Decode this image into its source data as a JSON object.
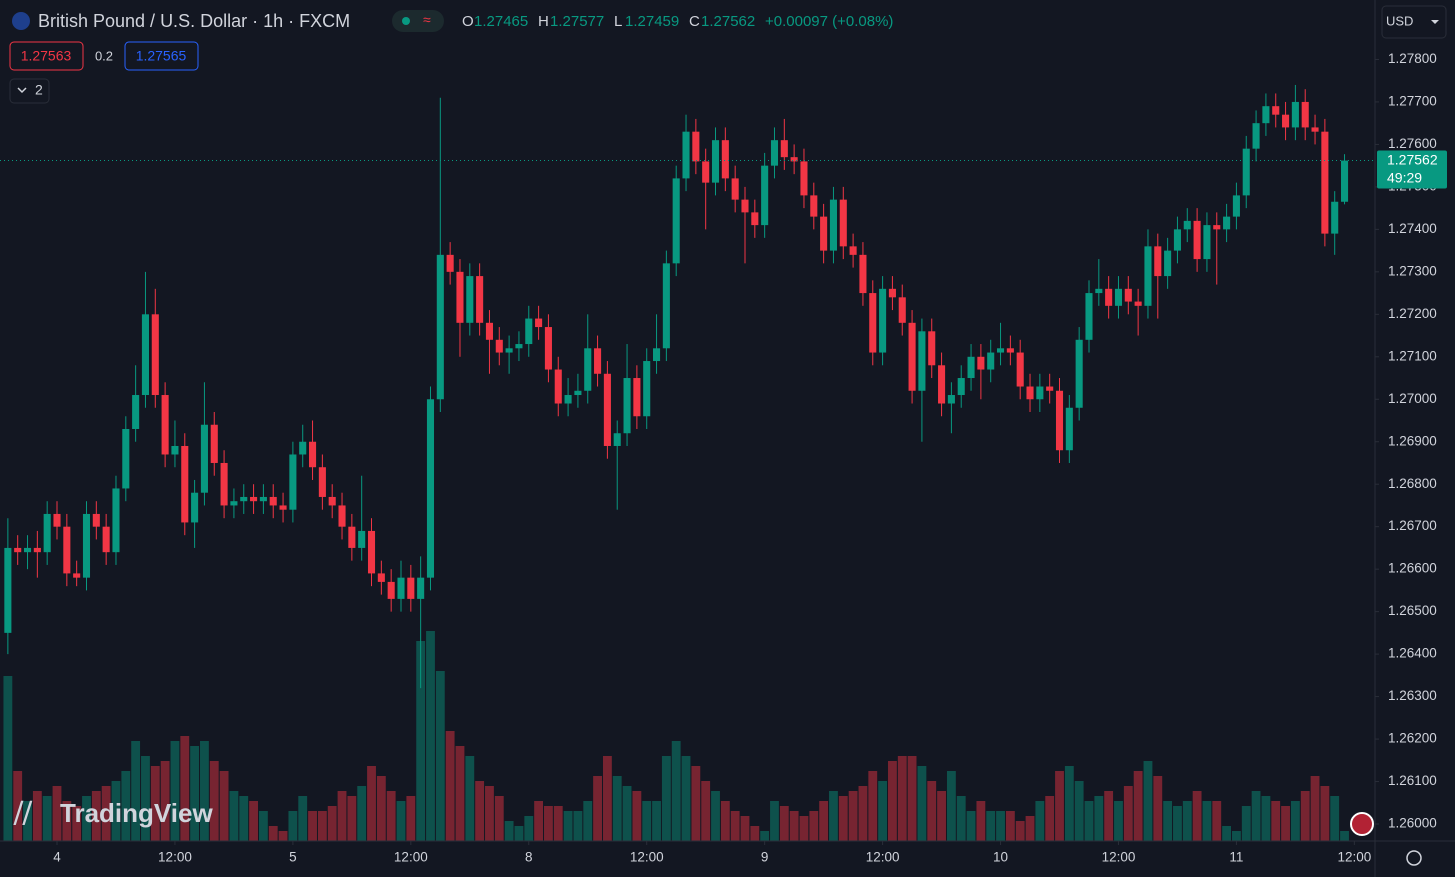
{
  "ui": {
    "symbol": "British Pound / U.S. Dollar · 1h · FXCM",
    "o": "O",
    "h": "H",
    "l": "L",
    "c": "C",
    "change": "+0.00097 (+0.08%)",
    "bid": "1.27563",
    "spread": "0.2",
    "ask": "1.27565",
    "indicators": "2",
    "currency": "USD",
    "countdown": "49:29",
    "brand": "TradingView"
  },
  "chart_data": {
    "type": "candlestick",
    "up_color": "#089981",
    "down_color": "#f23645",
    "grid": false,
    "ylim": [
      1.2596,
      1.2794
    ],
    "xlim": [
      -0.8,
      139.1
    ],
    "yticks": [
      {
        "value": 1.26,
        "label": "1.26000"
      },
      {
        "value": 1.261,
        "label": "1.26100"
      },
      {
        "value": 1.262,
        "label": "1.26200"
      },
      {
        "value": 1.263,
        "label": "1.26300"
      },
      {
        "value": 1.264,
        "label": "1.26400"
      },
      {
        "value": 1.265,
        "label": "1.26500"
      },
      {
        "value": 1.266,
        "label": "1.26600"
      },
      {
        "value": 1.267,
        "label": "1.26700"
      },
      {
        "value": 1.268,
        "label": "1.26800"
      },
      {
        "value": 1.269,
        "label": "1.26900"
      },
      {
        "value": 1.27,
        "label": "1.27000"
      },
      {
        "value": 1.271,
        "label": "1.27100"
      },
      {
        "value": 1.272,
        "label": "1.27200"
      },
      {
        "value": 1.273,
        "label": "1.27300"
      },
      {
        "value": 1.274,
        "label": "1.27400"
      },
      {
        "value": 1.275,
        "label": "1.27500"
      },
      {
        "value": 1.276,
        "label": "1.27600"
      },
      {
        "value": 1.277,
        "label": "1.27700"
      },
      {
        "value": 1.278,
        "label": "1.27800"
      }
    ],
    "xticks": [
      {
        "value": 5,
        "label": "4"
      },
      {
        "value": 17,
        "label": "12:00"
      },
      {
        "value": 29,
        "label": "5"
      },
      {
        "value": 41,
        "label": "12:00"
      },
      {
        "value": 53,
        "label": "8"
      },
      {
        "value": 65,
        "label": "12:00"
      },
      {
        "value": 77,
        "label": "9"
      },
      {
        "value": 89,
        "label": "12:00"
      },
      {
        "value": 101,
        "label": "10"
      },
      {
        "value": 113,
        "label": "12:00"
      },
      {
        "value": 125,
        "label": "11"
      },
      {
        "value": 137,
        "label": "12:00"
      }
    ],
    "ohlc": [
      [
        1.2645,
        1.2672,
        1.264,
        1.2665
      ],
      [
        1.2665,
        1.2668,
        1.2661,
        1.2664
      ],
      [
        1.2664,
        1.2668,
        1.266,
        1.2665
      ],
      [
        1.2665,
        1.2669,
        1.2658,
        1.2664
      ],
      [
        1.2664,
        1.2676,
        1.2661,
        1.2673
      ],
      [
        1.2673,
        1.2676,
        1.2667,
        1.267
      ],
      [
        1.267,
        1.2673,
        1.2656,
        1.2659
      ],
      [
        1.2659,
        1.2662,
        1.2656,
        1.2658
      ],
      [
        1.2658,
        1.2676,
        1.2655,
        1.2673
      ],
      [
        1.2673,
        1.2676,
        1.2667,
        1.267
      ],
      [
        1.267,
        1.2673,
        1.2661,
        1.2664
      ],
      [
        1.2664,
        1.2682,
        1.2661,
        1.2679
      ],
      [
        1.2679,
        1.2696,
        1.2676,
        1.2693
      ],
      [
        1.2693,
        1.2708,
        1.269,
        1.2701
      ],
      [
        1.2701,
        1.273,
        1.2698,
        1.272
      ],
      [
        1.272,
        1.2726,
        1.2698,
        1.2701
      ],
      [
        1.2701,
        1.2704,
        1.2684,
        1.2687
      ],
      [
        1.2687,
        1.2695,
        1.2684,
        1.2689
      ],
      [
        1.2689,
        1.2692,
        1.2668,
        1.2671
      ],
      [
        1.2671,
        1.2681,
        1.2665,
        1.2678
      ],
      [
        1.2678,
        1.2704,
        1.2675,
        1.2694
      ],
      [
        1.2694,
        1.2697,
        1.2682,
        1.2685
      ],
      [
        1.2685,
        1.2688,
        1.2672,
        1.2675
      ],
      [
        1.2675,
        1.2679,
        1.2672,
        1.2676
      ],
      [
        1.2676,
        1.268,
        1.2673,
        1.2677
      ],
      [
        1.2677,
        1.268,
        1.2673,
        1.2676
      ],
      [
        1.2676,
        1.268,
        1.2673,
        1.2677
      ],
      [
        1.2677,
        1.268,
        1.2672,
        1.2675
      ],
      [
        1.2675,
        1.2678,
        1.2671,
        1.2674
      ],
      [
        1.2674,
        1.269,
        1.2671,
        1.2687
      ],
      [
        1.2687,
        1.2694,
        1.2684,
        1.269
      ],
      [
        1.269,
        1.2695,
        1.2681,
        1.2684
      ],
      [
        1.2684,
        1.2687,
        1.2674,
        1.2677
      ],
      [
        1.2677,
        1.268,
        1.2672,
        1.2675
      ],
      [
        1.2675,
        1.2678,
        1.2667,
        1.267
      ],
      [
        1.267,
        1.2673,
        1.2662,
        1.2665
      ],
      [
        1.2665,
        1.2682,
        1.2662,
        1.2669
      ],
      [
        1.2669,
        1.2672,
        1.2656,
        1.2659
      ],
      [
        1.2659,
        1.2662,
        1.2654,
        1.2657
      ],
      [
        1.2657,
        1.266,
        1.265,
        1.2653
      ],
      [
        1.2653,
        1.2662,
        1.265,
        1.2658
      ],
      [
        1.2658,
        1.2661,
        1.265,
        1.2653
      ],
      [
        1.2653,
        1.2663,
        1.2632,
        1.2658
      ],
      [
        1.2658,
        1.2703,
        1.2655,
        1.27
      ],
      [
        1.27,
        1.2771,
        1.2697,
        1.2734
      ],
      [
        1.2734,
        1.2737,
        1.2727,
        1.273
      ],
      [
        1.273,
        1.2733,
        1.271,
        1.2718
      ],
      [
        1.2718,
        1.2732,
        1.2715,
        1.2729
      ],
      [
        1.2729,
        1.2732,
        1.2715,
        1.2718
      ],
      [
        1.2718,
        1.2721,
        1.2706,
        1.2714
      ],
      [
        1.2714,
        1.2717,
        1.2708,
        1.2711
      ],
      [
        1.2711,
        1.2715,
        1.2706,
        1.2712
      ],
      [
        1.2712,
        1.2716,
        1.2709,
        1.2713
      ],
      [
        1.2713,
        1.2722,
        1.271,
        1.2719
      ],
      [
        1.2719,
        1.2722,
        1.2714,
        1.2717
      ],
      [
        1.2717,
        1.272,
        1.2704,
        1.2707
      ],
      [
        1.2707,
        1.271,
        1.2696,
        1.2699
      ],
      [
        1.2699,
        1.2705,
        1.2696,
        1.2701
      ],
      [
        1.2701,
        1.2706,
        1.2698,
        1.2702
      ],
      [
        1.2702,
        1.272,
        1.2699,
        1.2712
      ],
      [
        1.2712,
        1.2715,
        1.2703,
        1.2706
      ],
      [
        1.2706,
        1.2709,
        1.2686,
        1.2689
      ],
      [
        1.2689,
        1.2695,
        1.2674,
        1.2692
      ],
      [
        1.2692,
        1.2713,
        1.2689,
        1.2705
      ],
      [
        1.2705,
        1.2708,
        1.2693,
        1.2696
      ],
      [
        1.2696,
        1.2712,
        1.2693,
        1.2709
      ],
      [
        1.2709,
        1.272,
        1.2706,
        1.2712
      ],
      [
        1.2712,
        1.2735,
        1.2709,
        1.2732
      ],
      [
        1.2732,
        1.2755,
        1.2729,
        1.2752
      ],
      [
        1.2752,
        1.2767,
        1.2749,
        1.2763
      ],
      [
        1.2763,
        1.2766,
        1.2753,
        1.2756
      ],
      [
        1.2756,
        1.2759,
        1.274,
        1.2751
      ],
      [
        1.2751,
        1.2764,
        1.2748,
        1.2761
      ],
      [
        1.2761,
        1.2764,
        1.2749,
        1.2752
      ],
      [
        1.2752,
        1.2755,
        1.2744,
        1.2747
      ],
      [
        1.2747,
        1.275,
        1.2732,
        1.2744
      ],
      [
        1.2744,
        1.2747,
        1.2738,
        1.2741
      ],
      [
        1.2741,
        1.2758,
        1.2738,
        1.2755
      ],
      [
        1.2755,
        1.2764,
        1.2752,
        1.2761
      ],
      [
        1.2761,
        1.2766,
        1.2754,
        1.2757
      ],
      [
        1.2757,
        1.276,
        1.2753,
        1.2756
      ],
      [
        1.2756,
        1.2759,
        1.2745,
        1.2748
      ],
      [
        1.2748,
        1.2751,
        1.274,
        1.2743
      ],
      [
        1.2743,
        1.2746,
        1.2732,
        1.2735
      ],
      [
        1.2735,
        1.275,
        1.2732,
        1.2747
      ],
      [
        1.2747,
        1.275,
        1.2733,
        1.2736
      ],
      [
        1.2736,
        1.2739,
        1.2731,
        1.2734
      ],
      [
        1.2734,
        1.2737,
        1.2722,
        1.2725
      ],
      [
        1.2725,
        1.2728,
        1.2708,
        1.2711
      ],
      [
        1.2711,
        1.2729,
        1.2708,
        1.2726
      ],
      [
        1.2726,
        1.2729,
        1.2721,
        1.2724
      ],
      [
        1.2724,
        1.2727,
        1.2715,
        1.2718
      ],
      [
        1.2718,
        1.2721,
        1.2699,
        1.2702
      ],
      [
        1.2702,
        1.2719,
        1.269,
        1.2716
      ],
      [
        1.2716,
        1.2719,
        1.2705,
        1.2708
      ],
      [
        1.2708,
        1.2711,
        1.2696,
        1.2699
      ],
      [
        1.2699,
        1.2704,
        1.2692,
        1.2701
      ],
      [
        1.2701,
        1.2708,
        1.2698,
        1.2705
      ],
      [
        1.2705,
        1.2713,
        1.2702,
        1.271
      ],
      [
        1.271,
        1.2713,
        1.27,
        1.2707
      ],
      [
        1.2707,
        1.2714,
        1.2704,
        1.2711
      ],
      [
        1.2711,
        1.2718,
        1.2708,
        1.2712
      ],
      [
        1.2712,
        1.2715,
        1.2708,
        1.2711
      ],
      [
        1.2711,
        1.2714,
        1.27,
        1.2703
      ],
      [
        1.2703,
        1.2706,
        1.2697,
        1.27
      ],
      [
        1.27,
        1.2706,
        1.2697,
        1.2703
      ],
      [
        1.2703,
        1.2706,
        1.2699,
        1.2702
      ],
      [
        1.2702,
        1.2705,
        1.2685,
        1.2688
      ],
      [
        1.2688,
        1.2701,
        1.2685,
        1.2698
      ],
      [
        1.2698,
        1.2717,
        1.2695,
        1.2714
      ],
      [
        1.2714,
        1.2728,
        1.2711,
        1.2725
      ],
      [
        1.2725,
        1.2733,
        1.2722,
        1.2726
      ],
      [
        1.2726,
        1.2729,
        1.2719,
        1.2722
      ],
      [
        1.2722,
        1.2729,
        1.2719,
        1.2726
      ],
      [
        1.2726,
        1.2729,
        1.272,
        1.2723
      ],
      [
        1.2723,
        1.2726,
        1.2715,
        1.2722
      ],
      [
        1.2722,
        1.274,
        1.2719,
        1.2736
      ],
      [
        1.2736,
        1.2739,
        1.2719,
        1.2729
      ],
      [
        1.2729,
        1.2738,
        1.2726,
        1.2735
      ],
      [
        1.2735,
        1.2743,
        1.2732,
        1.274
      ],
      [
        1.274,
        1.2745,
        1.2737,
        1.2742
      ],
      [
        1.2742,
        1.2745,
        1.273,
        1.2733
      ],
      [
        1.2733,
        1.2744,
        1.273,
        1.2741
      ],
      [
        1.2741,
        1.2744,
        1.2727,
        1.274
      ],
      [
        1.274,
        1.2746,
        1.2737,
        1.2743
      ],
      [
        1.2743,
        1.2751,
        1.274,
        1.2748
      ],
      [
        1.2748,
        1.2762,
        1.2745,
        1.2759
      ],
      [
        1.2759,
        1.2768,
        1.2756,
        1.2765
      ],
      [
        1.2765,
        1.2772,
        1.2762,
        1.2769
      ],
      [
        1.2769,
        1.2772,
        1.2764,
        1.2767
      ],
      [
        1.2767,
        1.277,
        1.2761,
        1.2764
      ],
      [
        1.2764,
        1.2774,
        1.2761,
        1.277
      ],
      [
        1.277,
        1.2773,
        1.2761,
        1.2764
      ],
      [
        1.2764,
        1.2767,
        1.276,
        1.2763
      ],
      [
        1.2763,
        1.2766,
        1.2736,
        1.2739
      ],
      [
        1.2739,
        1.2749,
        1.2734,
        1.27465
      ],
      [
        1.27465,
        1.27577,
        1.27459,
        1.27562
      ]
    ],
    "volume": [
      165,
      70,
      40,
      50,
      45,
      55,
      40,
      35,
      45,
      50,
      55,
      60,
      70,
      100,
      85,
      75,
      80,
      100,
      105,
      95,
      100,
      80,
      70,
      50,
      45,
      40,
      30,
      15,
      10,
      30,
      45,
      30,
      30,
      35,
      50,
      45,
      55,
      75,
      65,
      50,
      40,
      45,
      200,
      210,
      170,
      110,
      95,
      85,
      60,
      55,
      45,
      20,
      15,
      25,
      40,
      35,
      35,
      30,
      30,
      40,
      65,
      85,
      65,
      55,
      50,
      40,
      40,
      85,
      100,
      85,
      75,
      60,
      50,
      40,
      30,
      25,
      15,
      10,
      40,
      35,
      30,
      25,
      30,
      40,
      50,
      45,
      50,
      55,
      70,
      60,
      80,
      85,
      85,
      75,
      60,
      50,
      70,
      45,
      30,
      40,
      30,
      30,
      30,
      20,
      25,
      40,
      45,
      70,
      75,
      60,
      40,
      45,
      50,
      40,
      55,
      70,
      80,
      65,
      40,
      35,
      40,
      50,
      40,
      40,
      15,
      10,
      35,
      50,
      45,
      40,
      35,
      40,
      50,
      65,
      55,
      45,
      10
    ]
  }
}
